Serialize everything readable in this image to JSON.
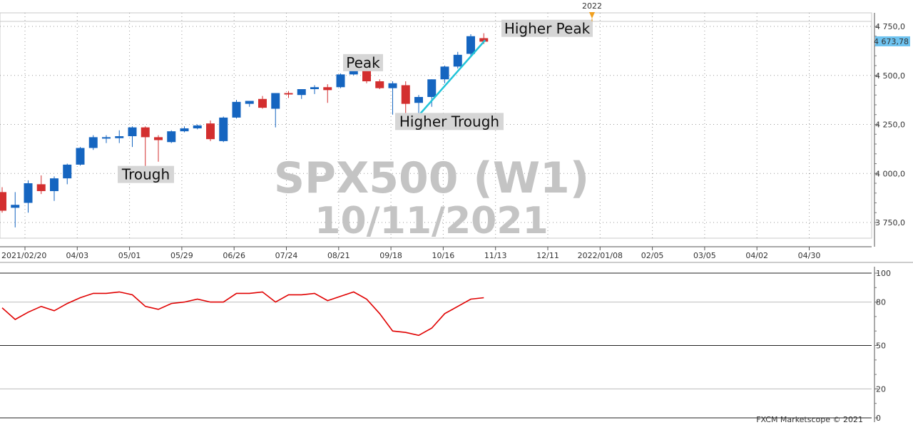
{
  "watermark": {
    "symbol": "SPX500 (W1)",
    "date": "10/11/2021"
  },
  "credit": "FXCM Marketscope © 2021",
  "colors": {
    "up": "#1565c0",
    "down": "#d32f2f",
    "trendline": "#22c4d8",
    "oscillator": "#e00000",
    "current_price_bg": "#6ec3f0"
  },
  "chart_data": [
    {
      "type": "candlestick",
      "y_ticks": [
        "4 750,0",
        "4 500,0",
        "4 250,0",
        "4 000,0",
        "3 750,0"
      ],
      "y_tick_values": [
        4750,
        4500,
        4250,
        4000,
        3750
      ],
      "ylim": [
        3700,
        4780
      ],
      "x_tick_labels": [
        "2021/02/20",
        "04/03",
        "05/01",
        "05/29",
        "06/26",
        "07/24",
        "08/21",
        "09/18",
        "10/16",
        "11/13",
        "12/11",
        "2022/01/08",
        "02/05",
        "03/05",
        "04/02",
        "04/30"
      ],
      "year_marker": "2022",
      "current_price": "4 673,78",
      "grid": true,
      "candles": [
        {
          "o": 3905,
          "h": 3930,
          "l": 3800,
          "c": 3810
        },
        {
          "o": 3825,
          "h": 3905,
          "l": 3725,
          "c": 3840
        },
        {
          "o": 3850,
          "h": 3965,
          "l": 3800,
          "c": 3950
        },
        {
          "o": 3945,
          "h": 3990,
          "l": 3895,
          "c": 3910
        },
        {
          "o": 3910,
          "h": 3985,
          "l": 3860,
          "c": 3975
        },
        {
          "o": 3975,
          "h": 4050,
          "l": 3945,
          "c": 4045
        },
        {
          "o": 4045,
          "h": 4135,
          "l": 4040,
          "c": 4130
        },
        {
          "o": 4130,
          "h": 4195,
          "l": 4120,
          "c": 4185
        },
        {
          "o": 4185,
          "h": 4195,
          "l": 4155,
          "c": 4185
        },
        {
          "o": 4180,
          "h": 4220,
          "l": 4155,
          "c": 4190
        },
        {
          "o": 4190,
          "h": 4240,
          "l": 4135,
          "c": 4235
        },
        {
          "o": 4235,
          "h": 4240,
          "l": 4035,
          "c": 4185
        },
        {
          "o": 4185,
          "h": 4195,
          "l": 4060,
          "c": 4170
        },
        {
          "o": 4160,
          "h": 4220,
          "l": 4155,
          "c": 4215
        },
        {
          "o": 4215,
          "h": 4240,
          "l": 4210,
          "c": 4230
        },
        {
          "o": 4230,
          "h": 4250,
          "l": 4225,
          "c": 4245
        },
        {
          "o": 4255,
          "h": 4270,
          "l": 4165,
          "c": 4175
        },
        {
          "o": 4165,
          "h": 4290,
          "l": 4160,
          "c": 4285
        },
        {
          "o": 4285,
          "h": 4375,
          "l": 4280,
          "c": 4365
        },
        {
          "o": 4355,
          "h": 4370,
          "l": 4340,
          "c": 4370
        },
        {
          "o": 4380,
          "h": 4395,
          "l": 4330,
          "c": 4335
        },
        {
          "o": 4330,
          "h": 4400,
          "l": 4235,
          "c": 4410
        },
        {
          "o": 4410,
          "h": 4420,
          "l": 4385,
          "c": 4405
        },
        {
          "o": 4400,
          "h": 4430,
          "l": 4380,
          "c": 4430
        },
        {
          "o": 4430,
          "h": 4450,
          "l": 4405,
          "c": 4440
        },
        {
          "o": 4440,
          "h": 4455,
          "l": 4360,
          "c": 4425
        },
        {
          "o": 4440,
          "h": 4510,
          "l": 4435,
          "c": 4505
        },
        {
          "o": 4505,
          "h": 4540,
          "l": 4500,
          "c": 4530
        },
        {
          "o": 4530,
          "h": 4540,
          "l": 4460,
          "c": 4470
        },
        {
          "o": 4470,
          "h": 4480,
          "l": 4430,
          "c": 4435
        },
        {
          "o": 4435,
          "h": 4470,
          "l": 4300,
          "c": 4460
        },
        {
          "o": 4450,
          "h": 4470,
          "l": 4295,
          "c": 4355
        },
        {
          "o": 4360,
          "h": 4400,
          "l": 4300,
          "c": 4390
        },
        {
          "o": 4390,
          "h": 4480,
          "l": 4340,
          "c": 4480
        },
        {
          "o": 4480,
          "h": 4550,
          "l": 4460,
          "c": 4545
        },
        {
          "o": 4545,
          "h": 4620,
          "l": 4535,
          "c": 4605
        },
        {
          "o": 4610,
          "h": 4710,
          "l": 4600,
          "c": 4700
        },
        {
          "o": 4690,
          "h": 4715,
          "l": 4660,
          "c": 4672
        }
      ],
      "trendline_points": [
        {
          "candle": 32,
          "price": 4300
        },
        {
          "candle": 37,
          "price": 4680
        }
      ],
      "annotations": [
        {
          "text": "Higher Peak",
          "candle": 37,
          "price": 4740
        },
        {
          "text": "Peak",
          "candle": 27,
          "price": 4565
        },
        {
          "text": "Higher Trough",
          "candle": 33,
          "price": 4265
        },
        {
          "text": "Trough",
          "candle": 11,
          "price": 3995
        }
      ]
    },
    {
      "type": "line",
      "series": [
        {
          "values": [
            76,
            68,
            73,
            77,
            74,
            79,
            83,
            86,
            86,
            87,
            85,
            77,
            75,
            79,
            80,
            82,
            80,
            80,
            86,
            86,
            87,
            80,
            85,
            85,
            86,
            81,
            84,
            87,
            82,
            72,
            60,
            59,
            57,
            62,
            72,
            77,
            82,
            83
          ]
        }
      ],
      "y_ticks": [
        "100",
        "80",
        "50",
        "20",
        "0"
      ],
      "y_tick_values": [
        100,
        80,
        50,
        20,
        0
      ],
      "ylim": [
        0,
        100
      ]
    }
  ]
}
